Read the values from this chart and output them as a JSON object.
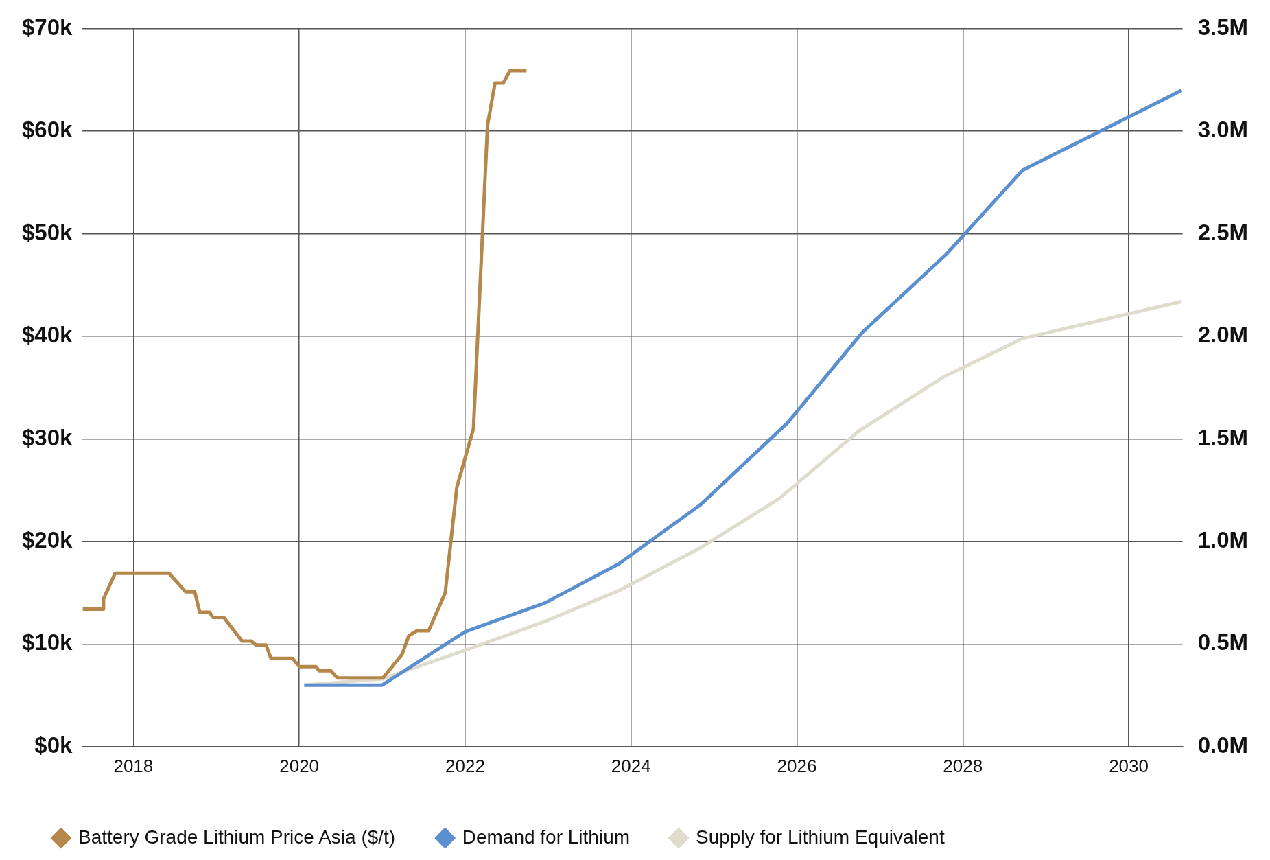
{
  "chart_data": {
    "type": "line",
    "xlim": [
      2017.38,
      2030.65
    ],
    "xticks": [
      2018,
      2020,
      2022,
      2024,
      2026,
      2028,
      2030
    ],
    "ylim": [
      0,
      70000
    ],
    "yticks": [
      {
        "value": 0,
        "label": "$0k"
      },
      {
        "value": 10000,
        "label": "$10k"
      },
      {
        "value": 20000,
        "label": "$20k"
      },
      {
        "value": 30000,
        "label": "$30k"
      },
      {
        "value": 40000,
        "label": "$40k"
      },
      {
        "value": 50000,
        "label": "$50k"
      },
      {
        "value": 60000,
        "label": "$60k"
      },
      {
        "value": 70000,
        "label": "$70k"
      }
    ],
    "y2lim": [
      0,
      3.5
    ],
    "y2ticks": [
      {
        "value": 0,
        "label": "0.0M"
      },
      {
        "value": 0.5,
        "label": "0.5M"
      },
      {
        "value": 1,
        "label": "1.0M"
      },
      {
        "value": 1.5,
        "label": "1.5M"
      },
      {
        "value": 2,
        "label": "2.0M"
      },
      {
        "value": 2.5,
        "label": "2.5M"
      },
      {
        "value": 3,
        "label": "3.0M"
      },
      {
        "value": 3.5,
        "label": "3.5M"
      }
    ],
    "grid": true,
    "legend": "bottom",
    "marker": "none",
    "line_style": "solid",
    "series": [
      {
        "name": "Battery Grade Lithium Price Asia ($/t)",
        "color": "#b5874a",
        "x": [
          2017.39,
          2017.64,
          2017.64,
          2017.78,
          2018.43,
          2018.63,
          2018.74,
          2018.8,
          2018.92,
          2018.96,
          2019.09,
          2019.31,
          2019.42,
          2019.48,
          2019.6,
          2019.66,
          2019.92,
          2020.0,
          2020.2,
          2020.24,
          2020.38,
          2020.46,
          2021.01,
          2021.24,
          2021.32,
          2021.42,
          2021.56,
          2021.76,
          2021.9,
          2022.1,
          2022.27,
          2022.36,
          2022.46,
          2022.54,
          2022.74
        ],
        "values": [
          13400,
          13400,
          14400,
          16900,
          16900,
          15100,
          15100,
          13100,
          13100,
          12600,
          12600,
          10300,
          10300,
          9900,
          9900,
          8600,
          8600,
          7800,
          7800,
          7400,
          7400,
          6700,
          6700,
          9000,
          10800,
          11300,
          11300,
          15000,
          25300,
          31000,
          60600,
          64700,
          64700,
          65900,
          65900
        ]
      },
      {
        "name": "Demand for Lithium",
        "color": "#5b8fcf",
        "axis": "y2",
        "x": [
          2020.06,
          2021.0,
          2022.0,
          2022.96,
          2023.85,
          2024.84,
          2025.89,
          2026.79,
          2027.8,
          2028.72,
          2030.64
        ],
        "values": [
          0.3,
          0.3,
          0.56,
          0.7,
          0.89,
          1.18,
          1.58,
          2.02,
          2.4,
          2.81,
          3.2
        ]
      },
      {
        "name": "Supply for Lithium Equivalent",
        "color": "#e0dccd",
        "axis": "y2",
        "x": [
          2020.06,
          2021.0,
          2022.0,
          2022.96,
          2023.85,
          2024.84,
          2025.79,
          2026.75,
          2027.76,
          2028.72,
          2030.64
        ],
        "values": [
          0.3,
          0.33,
          0.47,
          0.61,
          0.76,
          0.97,
          1.21,
          1.54,
          1.8,
          1.99,
          2.17
        ]
      }
    ]
  }
}
